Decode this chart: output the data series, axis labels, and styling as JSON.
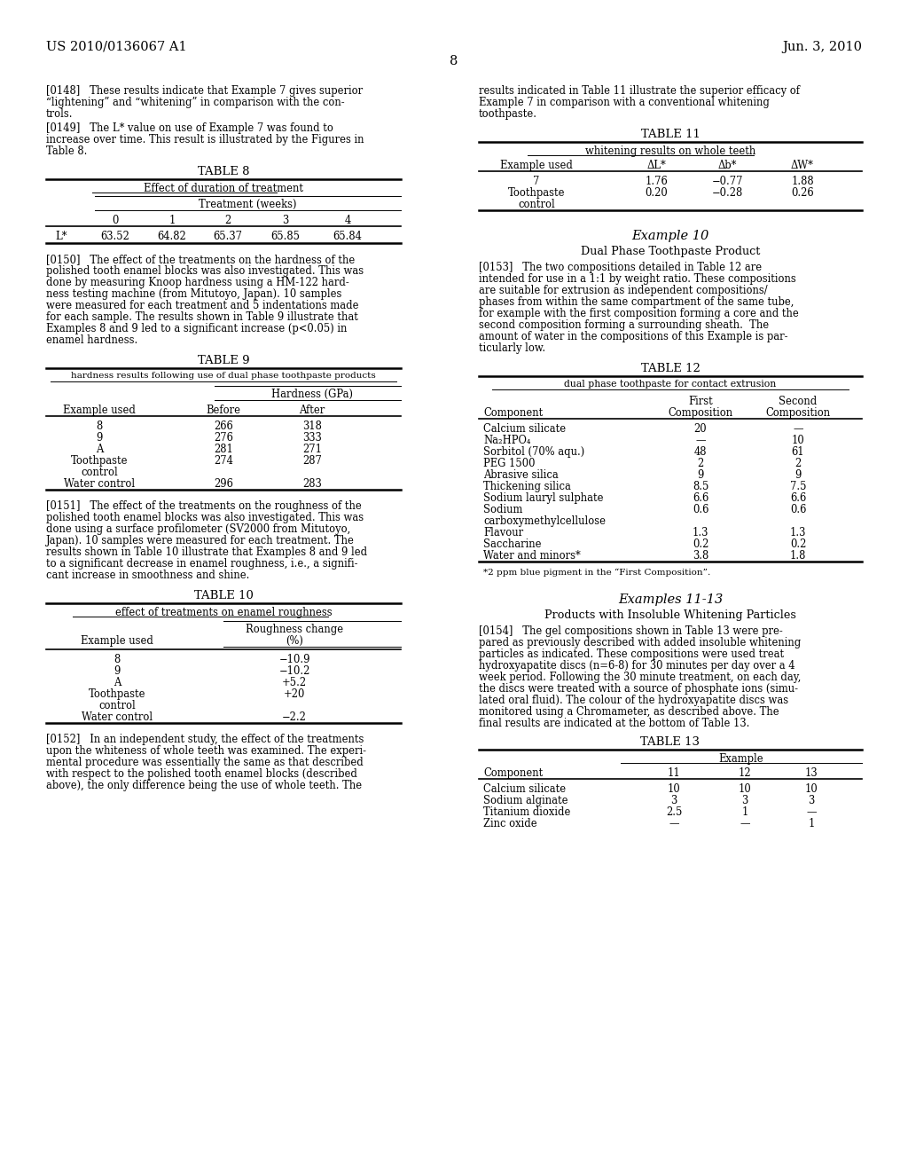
{
  "page_number": "8",
  "header_left": "US 2010/0136067 A1",
  "header_right": "Jun. 3, 2010",
  "background_color": "#ffffff",
  "text_color": "#000000"
}
